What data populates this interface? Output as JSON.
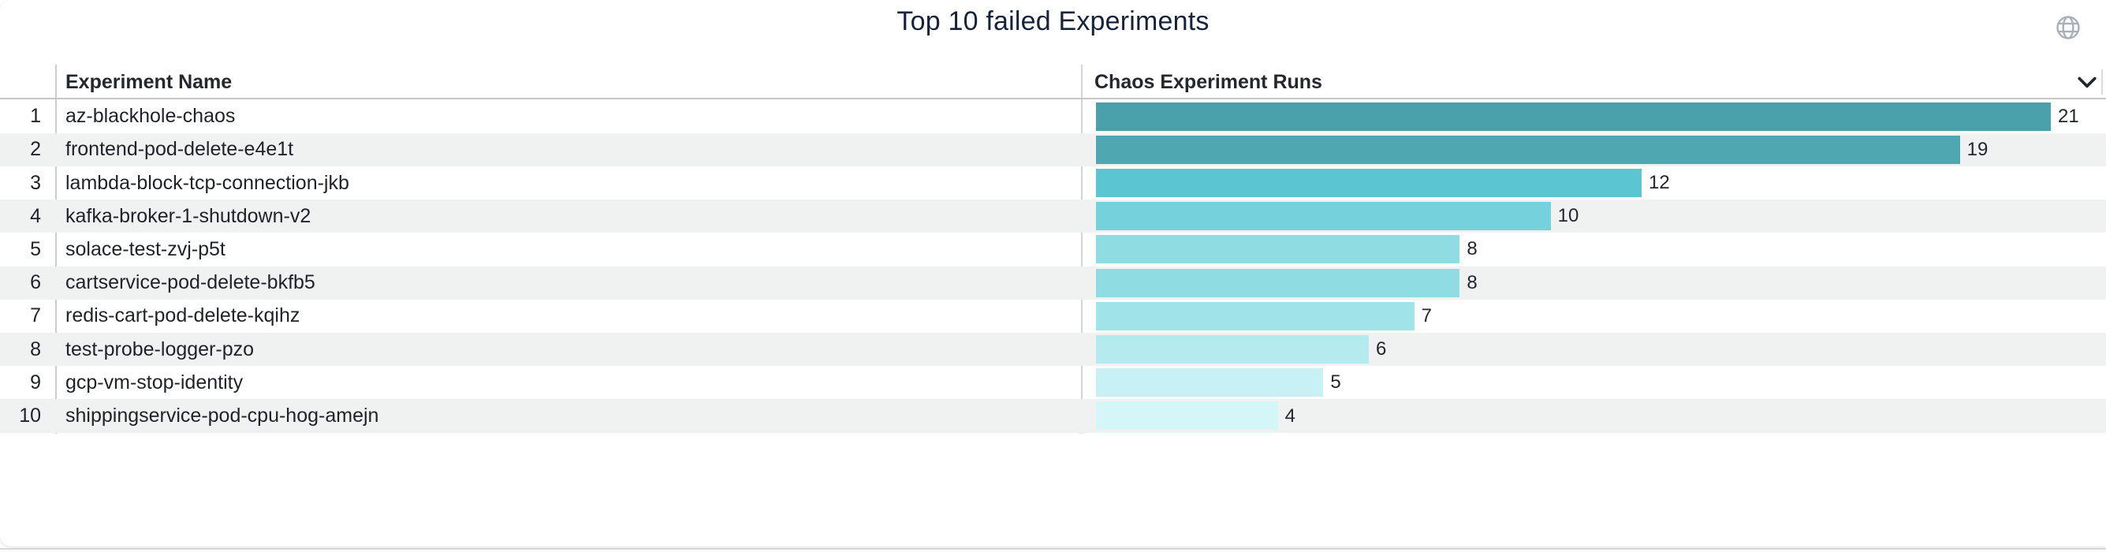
{
  "title": "Top 10 failed Experiments",
  "icons": {
    "top_right": "globe-icon",
    "runs_column_sort": "chevron-down-icon"
  },
  "colors": {
    "stripe": "#F0F1F1",
    "title_text": "#15233D",
    "bar_scale_max": "#4AA0AB",
    "bar_scale_min": "#D5F6F8"
  },
  "table": {
    "columns": {
      "name_header": "Experiment Name",
      "runs_header": "Chaos Experiment Runs"
    },
    "rows": [
      {
        "index": "1",
        "name": "az-blackhole-chaos",
        "runs": 21,
        "bar_color": "#4AA0AB"
      },
      {
        "index": "2",
        "name": "frontend-pod-delete-e4e1t",
        "runs": 19,
        "bar_color": "#4FA8B1"
      },
      {
        "index": "3",
        "name": "lambda-block-tcp-connection-jkb",
        "runs": 12,
        "bar_color": "#5BC6D2"
      },
      {
        "index": "4",
        "name": "kafka-broker-1-shutdown-v2",
        "runs": 10,
        "bar_color": "#75D2DC"
      },
      {
        "index": "5",
        "name": "solace-test-zvj-p5t",
        "runs": 8,
        "bar_color": "#8FDDE3"
      },
      {
        "index": "6",
        "name": "cartservice-pod-delete-bkfb5",
        "runs": 8,
        "bar_color": "#8FDDE3"
      },
      {
        "index": "7",
        "name": "redis-cart-pod-delete-kqihz",
        "runs": 7,
        "bar_color": "#A0E3E8"
      },
      {
        "index": "8",
        "name": "test-probe-logger-pzo",
        "runs": 6,
        "bar_color": "#B5EBEF"
      },
      {
        "index": "9",
        "name": "gcp-vm-stop-identity",
        "runs": 5,
        "bar_color": "#C7F1F4"
      },
      {
        "index": "10",
        "name": "shippingservice-pod-cpu-hog-amejn",
        "runs": 4,
        "bar_color": "#D5F6F8"
      }
    ]
  },
  "chart_data": {
    "type": "bar",
    "orientation": "horizontal",
    "title": "Top 10 failed Experiments",
    "series_label": "Chaos Experiment Runs",
    "categories": [
      "az-blackhole-chaos",
      "frontend-pod-delete-e4e1t",
      "lambda-block-tcp-connection-jkb",
      "kafka-broker-1-shutdown-v2",
      "solace-test-zvj-p5t",
      "cartservice-pod-delete-bkfb5",
      "redis-cart-pod-delete-kqihz",
      "test-probe-logger-pzo",
      "gcp-vm-stop-identity",
      "shippingservice-pod-cpu-hog-amejn"
    ],
    "values": [
      21,
      19,
      12,
      10,
      8,
      8,
      7,
      6,
      5,
      4
    ],
    "xlim": [
      0,
      21
    ],
    "value_labels_shown": true,
    "grid": false,
    "legend": "none",
    "color_scale": {
      "min_value": 4,
      "min_color": "#D5F6F8",
      "max_value": 21,
      "max_color": "#4AA0AB"
    }
  }
}
